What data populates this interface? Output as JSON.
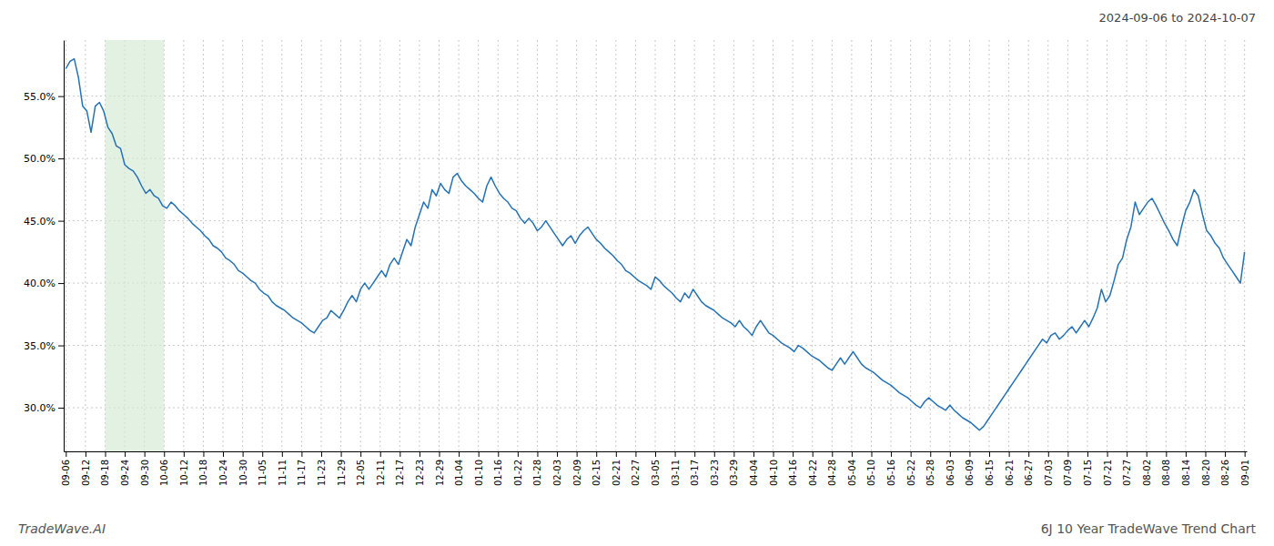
{
  "chart_data": {
    "type": "line",
    "title": "6J 10 Year TradeWave Trend Chart",
    "subtitle": "2024-09-06 to 2024-10-07",
    "annotations": [
      "TradeWave.AI"
    ],
    "color": "#2472b5",
    "grid": true,
    "shaded_range": {
      "from": "09-18",
      "to": "10-06",
      "color": "#d4ead4"
    },
    "ylim": [
      26.5,
      59.5
    ],
    "yticks": [
      {
        "value": 30.0,
        "label": "30.0%"
      },
      {
        "value": 35.0,
        "label": "35.0%"
      },
      {
        "value": 40.0,
        "label": "40.0%"
      },
      {
        "value": 45.0,
        "label": "45.0%"
      },
      {
        "value": 50.0,
        "label": "50.0%"
      },
      {
        "value": 55.0,
        "label": "55.0%"
      }
    ],
    "xlim": [
      -0.5,
      280.5
    ],
    "xticks": [
      {
        "value": 0,
        "label": "09-06"
      },
      {
        "value": 4.666666666666667,
        "label": "09-12"
      },
      {
        "value": 9.333333333333334,
        "label": "09-18"
      },
      {
        "value": 14,
        "label": "09-24"
      },
      {
        "value": 18.666666666666668,
        "label": "09-30"
      },
      {
        "value": 23.333333333333332,
        "label": "10-06"
      },
      {
        "value": 28,
        "label": "10-12"
      },
      {
        "value": 32.666666666666664,
        "label": "10-18"
      },
      {
        "value": 37.333333333333336,
        "label": "10-24"
      },
      {
        "value": 42,
        "label": "10-30"
      },
      {
        "value": 46.666666666666664,
        "label": "11-05"
      },
      {
        "value": 51.333333333333336,
        "label": "11-11"
      },
      {
        "value": 56,
        "label": "11-17"
      },
      {
        "value": 60.666666666666664,
        "label": "11-23"
      },
      {
        "value": 65.33333333333333,
        "label": "11-29"
      },
      {
        "value": 70,
        "label": "12-05"
      },
      {
        "value": 74.66666666666667,
        "label": "12-11"
      },
      {
        "value": 79.33333333333333,
        "label": "12-17"
      },
      {
        "value": 84,
        "label": "12-23"
      },
      {
        "value": 88.66666666666667,
        "label": "12-29"
      },
      {
        "value": 93.33333333333333,
        "label": "01-04"
      },
      {
        "value": 98,
        "label": "01-10"
      },
      {
        "value": 102.66666666666667,
        "label": "01-16"
      },
      {
        "value": 107.33333333333333,
        "label": "01-22"
      },
      {
        "value": 112,
        "label": "01-28"
      },
      {
        "value": 116.66666666666667,
        "label": "02-03"
      },
      {
        "value": 121.33333333333333,
        "label": "02-09"
      },
      {
        "value": 126,
        "label": "02-15"
      },
      {
        "value": 130.66666666666666,
        "label": "02-21"
      },
      {
        "value": 135.33333333333334,
        "label": "02-27"
      },
      {
        "value": 140,
        "label": "03-05"
      },
      {
        "value": 144.66666666666666,
        "label": "03-11"
      },
      {
        "value": 149.33333333333334,
        "label": "03-17"
      },
      {
        "value": 154,
        "label": "03-23"
      },
      {
        "value": 158.66666666666666,
        "label": "03-29"
      },
      {
        "value": 163.33333333333334,
        "label": "04-04"
      },
      {
        "value": 168,
        "label": "04-10"
      },
      {
        "value": 172.66666666666666,
        "label": "04-16"
      },
      {
        "value": 177.33333333333334,
        "label": "04-22"
      },
      {
        "value": 182,
        "label": "04-28"
      },
      {
        "value": 186.66666666666666,
        "label": "05-04"
      },
      {
        "value": 191.33333333333334,
        "label": "05-10"
      },
      {
        "value": 196,
        "label": "05-16"
      },
      {
        "value": 200.66666666666666,
        "label": "05-22"
      },
      {
        "value": 205.33333333333334,
        "label": "05-28"
      },
      {
        "value": 210,
        "label": "06-03"
      },
      {
        "value": 214.66666666666666,
        "label": "06-09"
      },
      {
        "value": 219.33333333333334,
        "label": "06-15"
      },
      {
        "value": 224,
        "label": "06-21"
      },
      {
        "value": 228.66666666666666,
        "label": "06-27"
      },
      {
        "value": 233.33333333333334,
        "label": "07-03"
      },
      {
        "value": 238,
        "label": "07-09"
      },
      {
        "value": 242.66666666666666,
        "label": "07-15"
      },
      {
        "value": 247.33333333333334,
        "label": "07-21"
      },
      {
        "value": 252,
        "label": "07-27"
      },
      {
        "value": 256.6666666666667,
        "label": "08-02"
      },
      {
        "value": 261.3333333333333,
        "label": "08-08"
      },
      {
        "value": 266,
        "label": "08-14"
      },
      {
        "value": 270.6666666666667,
        "label": "08-20"
      },
      {
        "value": 275.3333333333333,
        "label": "08-26"
      },
      {
        "value": 280,
        "label": "09-01"
      }
    ],
    "values": [
      57.2,
      57.8,
      58.0,
      56.5,
      54.2,
      53.8,
      52.1,
      54.2,
      54.5,
      53.8,
      52.5,
      52.0,
      51.0,
      50.8,
      49.5,
      49.2,
      49.0,
      48.5,
      47.8,
      47.2,
      47.5,
      47.0,
      46.8,
      46.2,
      46.0,
      46.5,
      46.2,
      45.8,
      45.5,
      45.2,
      44.8,
      44.5,
      44.2,
      43.8,
      43.5,
      43.0,
      42.8,
      42.5,
      42.0,
      41.8,
      41.5,
      41.0,
      40.8,
      40.5,
      40.2,
      40.0,
      39.5,
      39.2,
      39.0,
      38.5,
      38.2,
      38.0,
      37.8,
      37.5,
      37.2,
      37.0,
      36.8,
      36.5,
      36.2,
      36.0,
      36.5,
      37.0,
      37.2,
      37.8,
      37.5,
      37.2,
      37.8,
      38.5,
      39.0,
      38.5,
      39.5,
      40.0,
      39.5,
      40.0,
      40.5,
      41.0,
      40.5,
      41.5,
      42.0,
      41.5,
      42.5,
      43.5,
      43.0,
      44.5,
      45.5,
      46.5,
      46.0,
      47.5,
      47.0,
      48.0,
      47.5,
      47.2,
      48.5,
      48.8,
      48.2,
      47.8,
      47.5,
      47.2,
      46.8,
      46.5,
      47.8,
      48.5,
      47.8,
      47.2,
      46.8,
      46.5,
      46.0,
      45.8,
      45.2,
      44.8,
      45.2,
      44.8,
      44.2,
      44.5,
      45.0,
      44.5,
      44.0,
      43.5,
      43.0,
      43.5,
      43.8,
      43.2,
      43.8,
      44.2,
      44.5,
      44.0,
      43.5,
      43.2,
      42.8,
      42.5,
      42.2,
      41.8,
      41.5,
      41.0,
      40.8,
      40.5,
      40.2,
      40.0,
      39.8,
      39.5,
      40.5,
      40.2,
      39.8,
      39.5,
      39.2,
      38.8,
      38.5,
      39.2,
      38.8,
      39.5,
      39.0,
      38.5,
      38.2,
      38.0,
      37.8,
      37.5,
      37.2,
      37.0,
      36.8,
      36.5,
      37.0,
      36.5,
      36.2,
      35.8,
      36.5,
      37.0,
      36.5,
      36.0,
      35.8,
      35.5,
      35.2,
      35.0,
      34.8,
      34.5,
      35.0,
      34.8,
      34.5,
      34.2,
      34.0,
      33.8,
      33.5,
      33.2,
      33.0,
      33.5,
      34.0,
      33.5,
      34.0,
      34.5,
      34.0,
      33.5,
      33.2,
      33.0,
      32.8,
      32.5,
      32.2,
      32.0,
      31.8,
      31.5,
      31.2,
      31.0,
      30.8,
      30.5,
      30.2,
      30.0,
      30.5,
      30.8,
      30.5,
      30.2,
      30.0,
      29.8,
      30.2,
      29.8,
      29.5,
      29.2,
      29.0,
      28.8,
      28.5,
      28.2,
      28.5,
      29.0,
      29.5,
      30.0,
      30.5,
      31.0,
      31.5,
      32.0,
      32.5,
      33.0,
      33.5,
      34.0,
      34.5,
      35.0,
      35.5,
      35.2,
      35.8,
      36.0,
      35.5,
      35.8,
      36.2,
      36.5,
      36.0,
      36.5,
      37.0,
      36.5,
      37.2,
      38.0,
      39.5,
      38.5,
      39.0,
      40.2,
      41.5,
      42.0,
      43.5,
      44.5,
      46.5,
      45.5,
      46.0,
      46.5,
      46.8,
      46.2,
      45.5,
      44.8,
      44.2,
      43.5,
      43.0,
      44.5,
      45.8,
      46.5,
      47.5,
      47.0,
      45.5,
      44.2,
      43.8,
      43.2,
      42.8,
      42.0,
      41.5,
      41.0,
      40.5,
      40.0,
      42.5
    ]
  }
}
